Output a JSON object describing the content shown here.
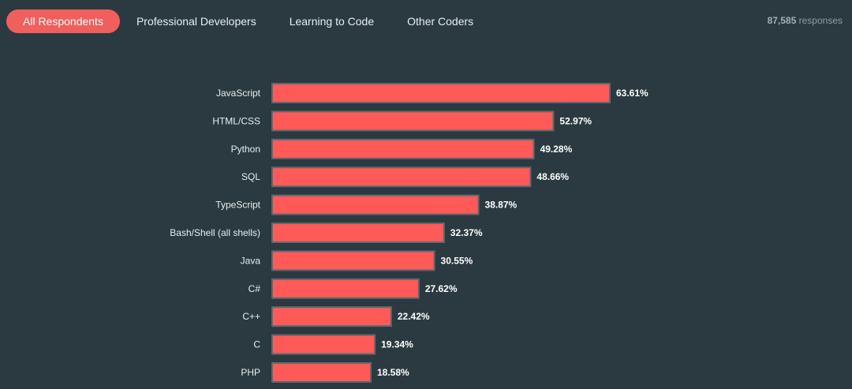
{
  "tabs": [
    {
      "label": "All Respondents",
      "active": true
    },
    {
      "label": "Professional Developers",
      "active": false
    },
    {
      "label": "Learning to Code",
      "active": false
    },
    {
      "label": "Other Coders",
      "active": false
    }
  ],
  "responses": {
    "count": "87,585",
    "label": "responses"
  },
  "colors": {
    "background": "#2a3a40",
    "bar": "#ff5a57",
    "active_tab": "#f05f5c"
  },
  "chart_data": {
    "type": "bar",
    "orientation": "horizontal",
    "title": "",
    "xlabel": "",
    "ylabel": "",
    "xlim": [
      0,
      100
    ],
    "unit": "%",
    "categories": [
      "JavaScript",
      "HTML/CSS",
      "Python",
      "SQL",
      "TypeScript",
      "Bash/Shell (all shells)",
      "Java",
      "C#",
      "C++",
      "C",
      "PHP"
    ],
    "values": [
      63.61,
      52.97,
      49.28,
      48.66,
      38.87,
      32.37,
      30.55,
      27.62,
      22.42,
      19.34,
      18.58
    ],
    "value_labels": [
      "63.61%",
      "52.97%",
      "49.28%",
      "48.66%",
      "38.87%",
      "32.37%",
      "30.55%",
      "27.62%",
      "22.42%",
      "19.34%",
      "18.58%"
    ]
  }
}
